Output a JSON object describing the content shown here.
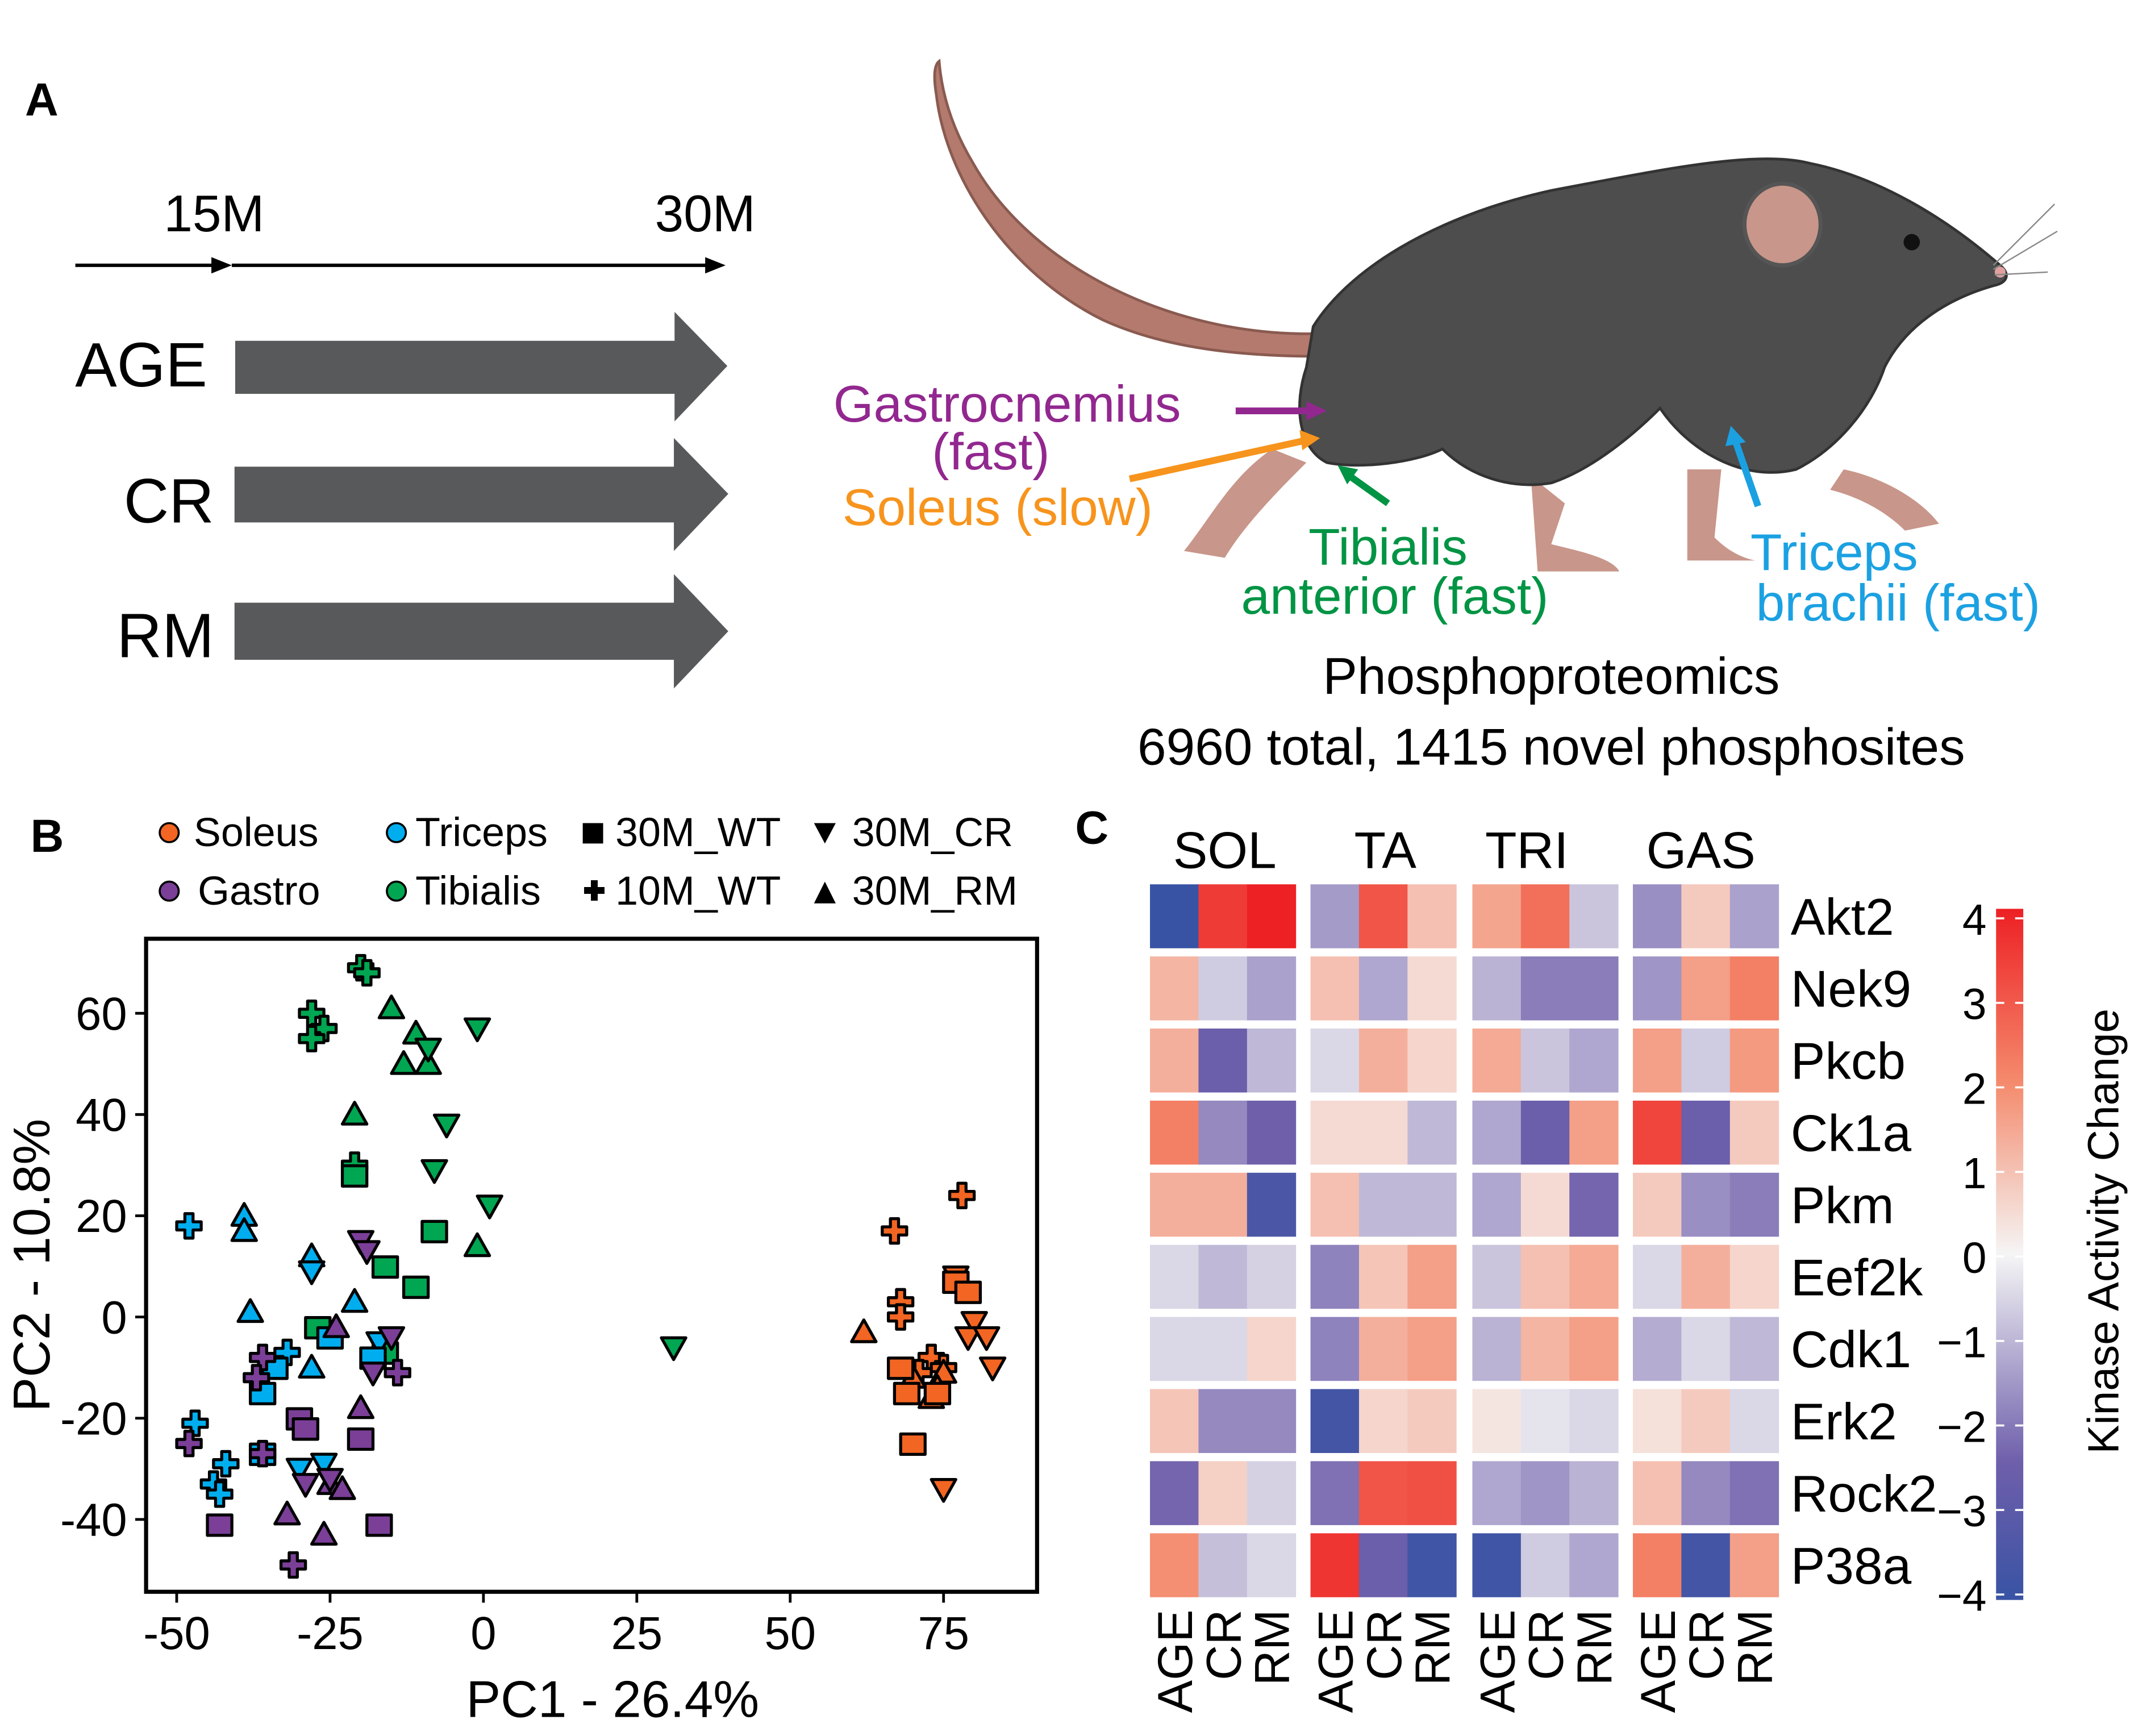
{
  "panel_a": {
    "label": "A",
    "timeline": {
      "start": "15M",
      "end": "30M"
    },
    "groups": [
      "AGE",
      "CR",
      "RM"
    ],
    "muscles": [
      {
        "lines": [
          "Gastrocnemius",
          "(fast)"
        ],
        "color": "#92278f"
      },
      {
        "lines": [
          "Soleus (slow)"
        ],
        "color": "#f7941d"
      },
      {
        "lines": [
          "Tibialis",
          "anterior (fast)"
        ],
        "color": "#009444"
      },
      {
        "lines": [
          "Triceps",
          "brachii (fast)"
        ],
        "color": "#1ba1e2"
      }
    ],
    "summary_title": "Phosphoproteomics",
    "summary_text": "6960 total, 1415 novel phosphosites"
  },
  "chart_data": [
    {
      "panel": "B",
      "type": "scatter",
      "xlabel": "PC1 - 26.4%",
      "ylabel": "PC2 - 10.8%",
      "xlim": [
        -55,
        90
      ],
      "ylim": [
        -53,
        75
      ],
      "xticks": [
        -50,
        -25,
        0,
        25,
        50,
        75
      ],
      "yticks": [
        60,
        40,
        20,
        0,
        -20,
        -40
      ],
      "grid": false,
      "legend": {
        "placement": "top",
        "tissues": [
          {
            "name": "Soleus",
            "color": "#f26522"
          },
          {
            "name": "Gastro",
            "color": "#7b3f98"
          },
          {
            "name": "Triceps",
            "color": "#00aeef"
          },
          {
            "name": "Tibialis",
            "color": "#00a651"
          }
        ],
        "groups": [
          {
            "name": "30M_WT",
            "marker": "square"
          },
          {
            "name": "10M_WT",
            "marker": "plus"
          },
          {
            "name": "30M_CR",
            "marker": "triangle-down"
          },
          {
            "name": "30M_RM",
            "marker": "triangle-up"
          }
        ]
      },
      "series": [
        {
          "tissue": "Tibialis",
          "group": "10M_WT",
          "points": [
            [
              -20,
              69
            ],
            [
              -19,
              68
            ],
            [
              -28,
              60
            ],
            [
              -26,
              57
            ],
            [
              -28,
              55
            ],
            [
              -21,
              30
            ]
          ]
        },
        {
          "tissue": "Tibialis",
          "group": "30M_RM",
          "points": [
            [
              -15,
              61
            ],
            [
              -11,
              56
            ],
            [
              -13,
              50
            ],
            [
              -9,
              50
            ],
            [
              -21,
              40
            ],
            [
              -1,
              14
            ]
          ]
        },
        {
          "tissue": "Tibialis",
          "group": "30M_CR",
          "points": [
            [
              -1,
              57
            ],
            [
              -9,
              53
            ],
            [
              -6,
              38
            ],
            [
              -8,
              29
            ],
            [
              1,
              22
            ],
            [
              31,
              -6
            ]
          ]
        },
        {
          "tissue": "Tibialis",
          "group": "30M_WT",
          "points": [
            [
              -21,
              28
            ],
            [
              -16,
              10
            ],
            [
              -11,
              6
            ],
            [
              -8,
              17
            ],
            [
              -27,
              -2
            ],
            [
              -16,
              -7
            ]
          ]
        },
        {
          "tissue": "Triceps",
          "group": "10M_WT",
          "points": [
            [
              -48,
              18
            ],
            [
              -47,
              -21
            ],
            [
              -42,
              -29
            ],
            [
              -44,
              -33
            ],
            [
              -43,
              -35
            ],
            [
              -32,
              -7
            ]
          ]
        },
        {
          "tissue": "Triceps",
          "group": "30M_RM",
          "points": [
            [
              -39,
              20
            ],
            [
              -39,
              17
            ],
            [
              -38,
              1
            ],
            [
              -28,
              12
            ],
            [
              -21,
              3
            ],
            [
              -28,
              -10
            ]
          ]
        },
        {
          "tissue": "Triceps",
          "group": "30M_CR",
          "points": [
            [
              -28,
              9
            ],
            [
              -17,
              -5
            ],
            [
              -30,
              -30
            ],
            [
              -26,
              -29
            ]
          ]
        },
        {
          "tissue": "Triceps",
          "group": "30M_WT",
          "points": [
            [
              -36,
              -15
            ],
            [
              -34,
              -10
            ],
            [
              -36,
              -27
            ],
            [
              -29,
              -22
            ],
            [
              -18,
              -8
            ],
            [
              -25,
              -4
            ]
          ]
        },
        {
          "tissue": "Gastro",
          "group": "10M_WT",
          "points": [
            [
              -36,
              -8
            ],
            [
              -37,
              -12
            ],
            [
              -48,
              -25
            ],
            [
              -36,
              -27
            ],
            [
              -31,
              -49
            ],
            [
              -14,
              -11
            ]
          ]
        },
        {
          "tissue": "Gastro",
          "group": "30M_RM",
          "points": [
            [
              -24,
              -2
            ],
            [
              -20,
              -18
            ],
            [
              -32,
              -39
            ],
            [
              -25,
              -33
            ],
            [
              -23,
              -34
            ],
            [
              -26,
              -43
            ]
          ]
        },
        {
          "tissue": "Gastro",
          "group": "30M_CR",
          "points": [
            [
              -20,
              15
            ],
            [
              -19,
              13
            ],
            [
              -18,
              -11
            ],
            [
              -15,
              -4
            ],
            [
              -29,
              -33
            ],
            [
              -25,
              -32
            ]
          ]
        },
        {
          "tissue": "Gastro",
          "group": "30M_WT",
          "points": [
            [
              -43,
              -41
            ],
            [
              -30,
              -20
            ],
            [
              -20,
              -24
            ],
            [
              -17,
              -41
            ],
            [
              -29,
              -22
            ]
          ]
        },
        {
          "tissue": "Soleus",
          "group": "10M_WT",
          "points": [
            [
              78,
              24
            ],
            [
              67,
              17
            ],
            [
              68,
              3
            ],
            [
              68,
              0
            ],
            [
              73,
              -8
            ],
            [
              75,
              -10
            ],
            [
              71,
              -11
            ]
          ]
        },
        {
          "tissue": "Soleus",
          "group": "30M_CR",
          "points": [
            [
              77,
              8
            ],
            [
              80,
              -1
            ],
            [
              79,
              -4
            ],
            [
              82,
              -4
            ],
            [
              83,
              -10
            ],
            [
              75,
              -34
            ]
          ]
        },
        {
          "tissue": "Soleus",
          "group": "30M_RM",
          "points": [
            [
              62,
              -3
            ],
            [
              70,
              -12
            ],
            [
              73,
              -16
            ],
            [
              75,
              -11
            ],
            [
              74,
              -14
            ]
          ]
        },
        {
          "tissue": "Soleus",
          "group": "30M_WT",
          "points": [
            [
              77,
              7
            ],
            [
              79,
              5
            ],
            [
              68,
              -10
            ],
            [
              69,
              -15
            ],
            [
              74,
              -15
            ],
            [
              70,
              -25
            ]
          ]
        }
      ]
    },
    {
      "panel": "C",
      "type": "heatmap",
      "column_groups": [
        "SOL",
        "TA",
        "TRI",
        "GAS"
      ],
      "columns": [
        "AGE",
        "CR",
        "RM"
      ],
      "rows": [
        "Akt2",
        "Nek9",
        "Pkcb",
        "Ck1a",
        "Pkm",
        "Eef2k",
        "Cdk1",
        "Erk2",
        "Rock2",
        "P38a"
      ],
      "values": [
        [
          -4.0,
          3.5,
          4.0,
          -1.5,
          3.0,
          1.0,
          1.5,
          2.5,
          -0.8,
          -1.7,
          0.8,
          -1.4
        ],
        [
          1.2,
          -0.7,
          -1.4,
          1.0,
          -1.3,
          0.5,
          -1.1,
          -2.0,
          -2.0,
          -1.6,
          1.6,
          2.2
        ],
        [
          1.3,
          -2.6,
          -1.0,
          -0.5,
          1.3,
          0.6,
          1.4,
          -0.8,
          -1.3,
          1.6,
          -0.7,
          1.7
        ],
        [
          2.2,
          -1.8,
          -2.5,
          0.5,
          0.5,
          -1.0,
          -1.3,
          -2.6,
          1.6,
          3.3,
          -2.6,
          0.8
        ],
        [
          1.3,
          1.3,
          -3.5,
          1.0,
          -1.0,
          -1.0,
          -1.3,
          0.5,
          -2.4,
          0.8,
          -1.7,
          -2.0
        ],
        [
          -0.5,
          -1.0,
          -0.6,
          -1.9,
          0.9,
          1.6,
          -0.8,
          1.0,
          1.4,
          -0.5,
          1.3,
          0.6
        ],
        [
          -0.5,
          -0.5,
          0.6,
          -1.9,
          1.3,
          1.6,
          -1.1,
          1.2,
          1.6,
          -1.2,
          -0.5,
          -1.0
        ],
        [
          0.9,
          -1.8,
          -1.8,
          -3.7,
          0.6,
          0.8,
          0.3,
          -0.3,
          -0.5,
          0.4,
          0.8,
          -0.5
        ],
        [
          -2.4,
          0.7,
          -0.6,
          -2.2,
          3.0,
          3.1,
          -1.3,
          -1.6,
          -1.1,
          1.0,
          -1.8,
          -2.2
        ],
        [
          1.9,
          -0.9,
          -0.5,
          3.6,
          -2.6,
          -3.8,
          -3.8,
          -0.7,
          -1.3,
          2.2,
          -3.7,
          1.6
        ]
      ],
      "colorbar": {
        "label": "Kinase Activity Change",
        "range": [
          -4,
          4
        ],
        "ticks": [
          "4",
          "3",
          "2",
          "1",
          "0",
          "−1",
          "−2",
          "−3",
          "−4"
        ],
        "colors": {
          "low": "#3953a4",
          "mid_low": "#6f5fab",
          "center": "#f5f5f5",
          "mid_high": "#f48a6c",
          "high": "#ed2024"
        }
      }
    }
  ]
}
